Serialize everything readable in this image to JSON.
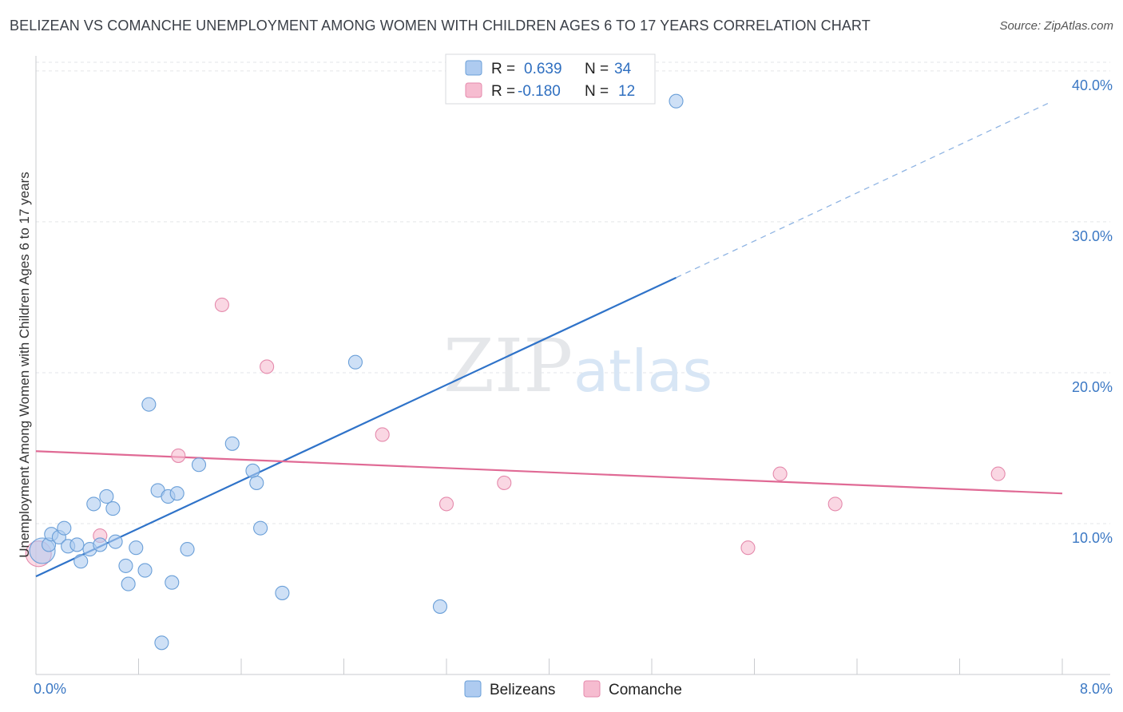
{
  "header": {
    "title": "BELIZEAN VS COMANCHE UNEMPLOYMENT AMONG WOMEN WITH CHILDREN AGES 6 TO 17 YEARS CORRELATION CHART",
    "source": "Source: ZipAtlas.com"
  },
  "watermark": {
    "zip": "ZIP",
    "atlas": "atlas"
  },
  "legend": {
    "rows": [
      {
        "r_label": "R =",
        "r_value": "0.639",
        "n_label": "N =",
        "n_value": "34",
        "color": "#aecbf0"
      },
      {
        "r_label": "R =",
        "r_value": "-0.180",
        "n_label": "N =",
        "n_value": "12",
        "color": "#f6bcd0"
      }
    ]
  },
  "bottom_legend": [
    {
      "label": "Belizeans",
      "color": "#aecbf0"
    },
    {
      "label": "Comanche",
      "color": "#f6bcd0"
    }
  ],
  "chart_data": {
    "type": "scatter",
    "title": "BELIZEAN VS COMANCHE UNEMPLOYMENT AMONG WOMEN WITH CHILDREN AGES 6 TO 17 YEARS CORRELATION CHART",
    "xlabel": "",
    "ylabel": "Unemployment Among Women with Children Ages 6 to 17 years",
    "xlim": [
      0,
      8
    ],
    "ylim": [
      0,
      41
    ],
    "x_tick_labels": [
      "0.0%",
      "8.0%"
    ],
    "y_ticks": [
      10,
      20,
      30,
      40
    ],
    "y_tick_labels": [
      "10.0%",
      "20.0%",
      "30.0%",
      "40.0%"
    ],
    "grid": true,
    "legend_position": "top-center",
    "series": [
      {
        "name": "Belizeans",
        "color": "#aecbf0",
        "stroke": "#6a9fd8",
        "points": [
          [
            0.05,
            8.2
          ],
          [
            0.1,
            8.6
          ],
          [
            0.12,
            9.3
          ],
          [
            0.18,
            9.1
          ],
          [
            0.22,
            9.7
          ],
          [
            0.25,
            8.5
          ],
          [
            0.32,
            8.6
          ],
          [
            0.35,
            7.5
          ],
          [
            0.42,
            8.3
          ],
          [
            0.45,
            11.3
          ],
          [
            0.5,
            8.6
          ],
          [
            0.55,
            11.8
          ],
          [
            0.6,
            11.0
          ],
          [
            0.62,
            8.8
          ],
          [
            0.7,
            7.2
          ],
          [
            0.72,
            6.0
          ],
          [
            0.78,
            8.4
          ],
          [
            0.85,
            6.9
          ],
          [
            0.88,
            17.9
          ],
          [
            0.95,
            12.2
          ],
          [
            0.98,
            2.1
          ],
          [
            1.03,
            11.8
          ],
          [
            1.06,
            6.1
          ],
          [
            1.1,
            12.0
          ],
          [
            1.18,
            8.3
          ],
          [
            1.27,
            13.9
          ],
          [
            1.53,
            15.3
          ],
          [
            1.69,
            13.5
          ],
          [
            1.72,
            12.7
          ],
          [
            1.75,
            9.7
          ],
          [
            1.92,
            5.4
          ],
          [
            2.49,
            20.7
          ],
          [
            3.15,
            4.5
          ],
          [
            4.99,
            38.0
          ]
        ],
        "trend": {
          "x0": 0.0,
          "y0": 6.5,
          "x1": 4.99,
          "y1": 26.3,
          "dash_x1": 7.9,
          "dash_y1": 37.9
        }
      },
      {
        "name": "Comanche",
        "color": "#f6bcd0",
        "stroke": "#e58aac",
        "points": [
          [
            0.02,
            8.0
          ],
          [
            0.5,
            9.2
          ],
          [
            1.11,
            14.5
          ],
          [
            1.45,
            24.5
          ],
          [
            1.8,
            20.4
          ],
          [
            2.7,
            15.9
          ],
          [
            3.2,
            11.3
          ],
          [
            3.65,
            12.7
          ],
          [
            5.55,
            8.4
          ],
          [
            5.8,
            13.3
          ],
          [
            6.23,
            11.3
          ],
          [
            7.5,
            13.3
          ]
        ],
        "trend": {
          "x0": 0.0,
          "y0": 14.8,
          "x1": 8.0,
          "y1": 12.0
        }
      }
    ]
  }
}
